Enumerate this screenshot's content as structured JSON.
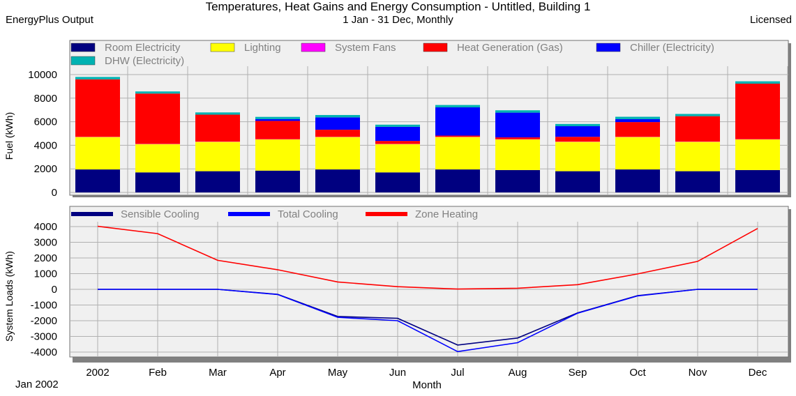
{
  "header": {
    "title": "Temperatures, Heat Gains and Energy Consumption - Untitled, Building 1",
    "subtitle": "1 Jan - 31 Dec, Monthly",
    "left_label": "EnergyPlus Output",
    "right_label": "Licensed",
    "period_label": "Jan 2002"
  },
  "chart_data": [
    {
      "type": "bar",
      "stacked": true,
      "ylabel": "Fuel (kWh)",
      "ylim": [
        0,
        10000
      ],
      "yticks": [
        0,
        2000,
        4000,
        6000,
        8000,
        10000
      ],
      "grid": true,
      "legend_position": "top",
      "categories": [
        "2002",
        "Feb",
        "Mar",
        "Apr",
        "May",
        "Jun",
        "Jul",
        "Aug",
        "Sep",
        "Oct",
        "Nov",
        "Dec"
      ],
      "series": [
        {
          "name": "Room Electricity",
          "color": "#000080",
          "values": [
            1950,
            1700,
            1800,
            1850,
            1950,
            1700,
            1950,
            1900,
            1800,
            1950,
            1800,
            1900
          ]
        },
        {
          "name": "Lighting",
          "color": "#ffff00",
          "values": [
            2750,
            2400,
            2500,
            2650,
            2750,
            2400,
            2750,
            2600,
            2500,
            2750,
            2500,
            2600
          ]
        },
        {
          "name": "System Fans",
          "color": "#ff00ff",
          "values": [
            20,
            20,
            20,
            20,
            20,
            20,
            20,
            20,
            20,
            20,
            20,
            20
          ]
        },
        {
          "name": "Heat Generation (Gas)",
          "color": "#ff0000",
          "values": [
            4880,
            4270,
            2280,
            1550,
            600,
            250,
            100,
            150,
            400,
            1250,
            2150,
            4710
          ]
        },
        {
          "name": "Chiller (Electricity)",
          "color": "#0000ff",
          "values": [
            0,
            0,
            0,
            150,
            1050,
            1200,
            2400,
            2100,
            900,
            250,
            0,
            0
          ]
        },
        {
          "name": "DHW (Electricity)",
          "color": "#00b2b2",
          "values": [
            200,
            180,
            190,
            190,
            200,
            180,
            200,
            200,
            190,
            200,
            190,
            200
          ]
        }
      ]
    },
    {
      "type": "line",
      "xlabel": "Month",
      "ylabel": "System Loads (kWh)",
      "ylim": [
        -4000,
        4000
      ],
      "yticks": [
        -4000,
        -3000,
        -2000,
        -1000,
        0,
        1000,
        2000,
        3000,
        4000
      ],
      "grid": true,
      "legend_position": "top",
      "categories": [
        "2002",
        "Feb",
        "Mar",
        "Apr",
        "May",
        "Jun",
        "Jul",
        "Aug",
        "Sep",
        "Oct",
        "Nov",
        "Dec"
      ],
      "series": [
        {
          "name": "Sensible Cooling",
          "color": "#000080",
          "values": [
            0,
            0,
            0,
            -320,
            -1730,
            -1850,
            -3550,
            -3100,
            -1500,
            -400,
            0,
            0
          ]
        },
        {
          "name": "Total Cooling",
          "color": "#0000ff",
          "values": [
            0,
            0,
            0,
            -330,
            -1780,
            -2000,
            -3970,
            -3400,
            -1520,
            -420,
            0,
            0
          ]
        },
        {
          "name": "Zone Heating",
          "color": "#ff0000",
          "values": [
            4020,
            3550,
            1850,
            1250,
            470,
            170,
            20,
            70,
            300,
            980,
            1780,
            3880
          ]
        }
      ]
    }
  ]
}
